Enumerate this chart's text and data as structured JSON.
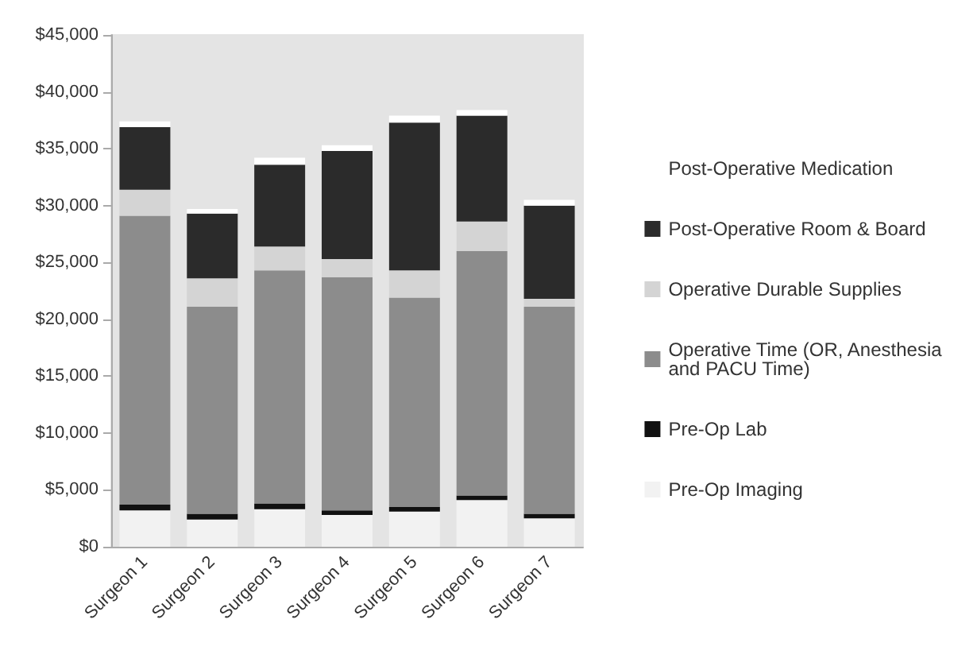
{
  "chart_data": {
    "type": "bar",
    "stacked": true,
    "categories": [
      "Surgeon 1",
      "Surgeon 2",
      "Surgeon 3",
      "Surgeon 4",
      "Surgeon 5",
      "Surgeon 6",
      "Surgeon 7"
    ],
    "series": [
      {
        "name": "Pre-Op Imaging",
        "color": "#f2f2f2",
        "values": [
          3200,
          2400,
          3300,
          2800,
          3100,
          4100,
          2500
        ]
      },
      {
        "name": "Pre-Op Lab",
        "color": "#111111",
        "values": [
          500,
          500,
          500,
          400,
          400,
          400,
          400
        ]
      },
      {
        "name": "Operative Time (OR, Anesthesia and PACU Time)",
        "color": "#8c8c8c",
        "values": [
          25400,
          18200,
          20500,
          20500,
          18400,
          21500,
          18200
        ]
      },
      {
        "name": "Operative Durable Supplies",
        "color": "#d4d4d4",
        "values": [
          2300,
          2500,
          2100,
          1600,
          2400,
          2600,
          700
        ]
      },
      {
        "name": "Post-Operative Room & Board",
        "color": "#2b2b2b",
        "values": [
          5500,
          5700,
          7200,
          9500,
          13000,
          9300,
          8200
        ]
      },
      {
        "name": "Post-Operative Medication",
        "color": "#ffffff",
        "values": [
          500,
          400,
          600,
          500,
          600,
          500,
          500
        ]
      }
    ],
    "ylim": [
      0,
      45000
    ],
    "yticks": [
      {
        "value": 0,
        "label": "$0"
      },
      {
        "value": 5000,
        "label": "$5,000"
      },
      {
        "value": 10000,
        "label": "$10,000"
      },
      {
        "value": 15000,
        "label": "$15,000"
      },
      {
        "value": 20000,
        "label": "$20,000"
      },
      {
        "value": 25000,
        "label": "$25,000"
      },
      {
        "value": 30000,
        "label": "$30,000"
      },
      {
        "value": 35000,
        "label": "$35,000"
      },
      {
        "value": 40000,
        "label": "$40,000"
      },
      {
        "value": 45000,
        "label": "$45,000"
      }
    ],
    "grid": false,
    "legend": "right"
  }
}
